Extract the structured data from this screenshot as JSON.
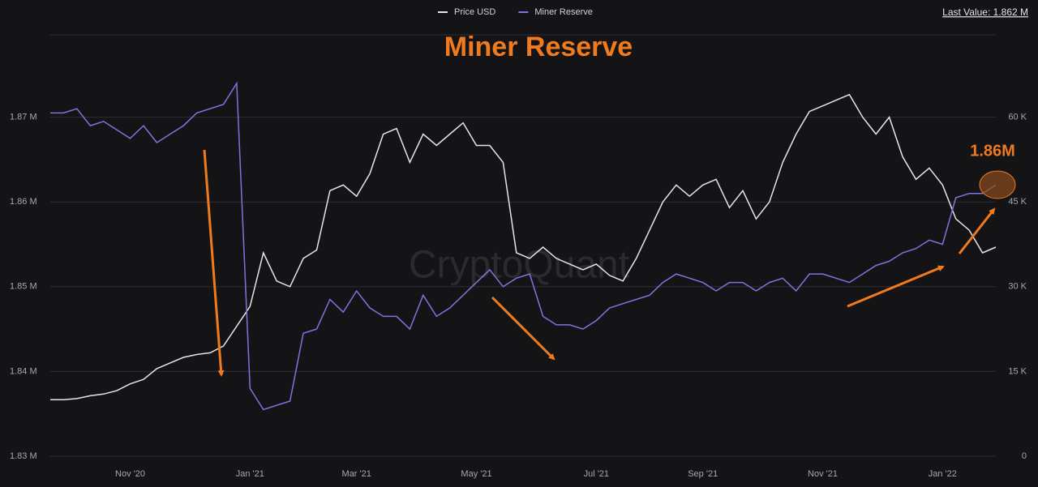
{
  "chart_data": {
    "type": "line",
    "title": "Miner Reserve",
    "annotations": [
      "1.86M",
      "Last Value: 1.862 M",
      "CryptoQuant"
    ],
    "categories": [
      null,
      null,
      null,
      null,
      null,
      null,
      "Nov '20",
      null,
      null,
      null,
      null,
      null,
      null,
      null,
      null,
      "Jan '21",
      null,
      null,
      null,
      null,
      null,
      null,
      null,
      "Mar '21",
      null,
      null,
      null,
      null,
      null,
      null,
      null,
      null,
      "May '21",
      null,
      null,
      null,
      null,
      null,
      null,
      null,
      null,
      "Jul '21",
      null,
      null,
      null,
      null,
      null,
      null,
      null,
      "Sep '21",
      null,
      null,
      null,
      null,
      null,
      null,
      null,
      null,
      "Nov '21",
      null,
      null,
      null,
      null,
      null,
      null,
      null,
      null,
      "Jan '22",
      null,
      null,
      null,
      null
    ],
    "series": [
      {
        "name": "Price USD",
        "color": "#e6e6ea",
        "axis": "y2",
        "values": [
          10.0,
          10.0,
          10.2,
          10.7,
          11.0,
          11.6,
          12.8,
          13.6,
          15.5,
          16.5,
          17.5,
          18.0,
          18.3,
          19.5,
          23.0,
          26.5,
          36.0,
          31.0,
          30.0,
          35.0,
          36.5,
          47.0,
          48.0,
          46.0,
          50.0,
          57.0,
          58.0,
          52.0,
          57.0,
          55.0,
          57.0,
          59.0,
          55.0,
          55.0,
          52.0,
          36.0,
          35.0,
          37.0,
          35.0,
          34.0,
          33.0,
          34.0,
          32.0,
          31.0,
          35.0,
          40.0,
          45.0,
          48.0,
          46.0,
          48.0,
          49.0,
          44.0,
          47.0,
          42.0,
          45.0,
          52.0,
          57.0,
          61.0,
          62.0,
          63.0,
          64.0,
          60.0,
          57.0,
          60.0,
          53.0,
          49.0,
          51.0,
          48.0,
          42.0,
          40.0,
          36.0,
          37.0
        ]
      },
      {
        "name": "Miner Reserve",
        "color": "#7b75e0",
        "values": [
          1.8705,
          1.8705,
          1.871,
          1.869,
          1.8695,
          1.8685,
          1.8675,
          1.869,
          1.867,
          1.868,
          1.869,
          1.8705,
          1.871,
          1.8715,
          1.874,
          1.838,
          1.8355,
          1.836,
          1.8365,
          1.8445,
          1.845,
          1.8485,
          1.847,
          1.8495,
          1.8475,
          1.8465,
          1.8465,
          1.845,
          1.849,
          1.8465,
          1.8475,
          1.849,
          1.8505,
          1.852,
          1.85,
          1.851,
          1.8515,
          1.8465,
          1.8455,
          1.8455,
          1.845,
          1.846,
          1.8475,
          1.848,
          1.8485,
          1.849,
          1.8505,
          1.8515,
          1.851,
          1.8505,
          1.8495,
          1.8505,
          1.8505,
          1.8495,
          1.8505,
          1.851,
          1.8495,
          1.8515,
          1.8515,
          1.851,
          1.8505,
          1.8515,
          1.8525,
          1.853,
          1.854,
          1.8545,
          1.8555,
          1.855,
          1.8605,
          1.861,
          1.861,
          1.862
        ]
      }
    ],
    "ylim": [
      1.83,
      1.88
    ],
    "yticks": [
      {
        "value": 1.83,
        "label": "1.83 M"
      },
      {
        "value": 1.84,
        "label": "1.84 M"
      },
      {
        "value": 1.85,
        "label": "1.85 M"
      },
      {
        "value": 1.86,
        "label": "1.86 M"
      },
      {
        "value": 1.87,
        "label": "1.87 M"
      }
    ],
    "y2lim": [
      0,
      75
    ],
    "y2ticks": [
      0,
      {
        "value": 15,
        "label": "15 K"
      },
      {
        "value": 30,
        "label": "30 K"
      },
      {
        "value": 45,
        "label": "45 K"
      },
      {
        "value": 60,
        "label": "60 K"
      }
    ],
    "grid": true
  }
}
